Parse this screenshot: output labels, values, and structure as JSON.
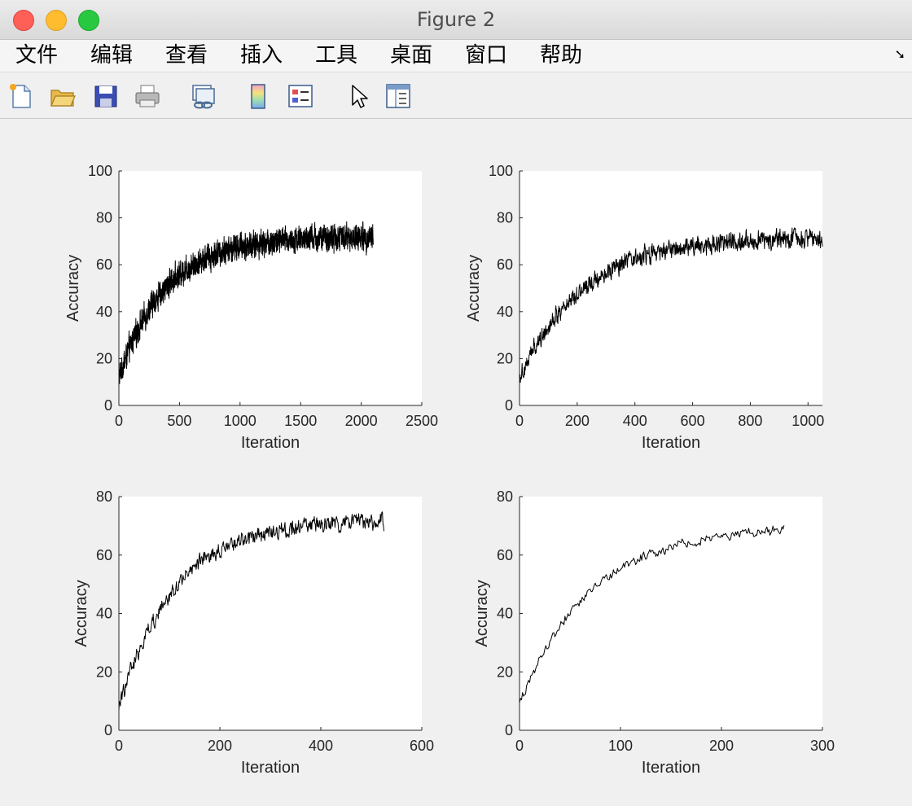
{
  "window": {
    "title": "Figure 2"
  },
  "menu": {
    "items": [
      "文件",
      "编辑",
      "查看",
      "插入",
      "工具",
      "桌面",
      "窗口",
      "帮助"
    ]
  },
  "toolbar": {
    "icons": [
      "new-figure-icon",
      "open-file-icon",
      "save-icon",
      "print-icon",
      "link-figure-icon",
      "colorbar-icon",
      "legend-icon",
      "pointer-icon",
      "property-inspector-icon"
    ]
  },
  "chart_data": [
    {
      "type": "line",
      "xlabel": "Iteration",
      "ylabel": "Accuracy",
      "xlim": [
        0,
        2500
      ],
      "ylim": [
        0,
        100
      ],
      "xticks": [
        0,
        500,
        1000,
        1500,
        2000,
        2500
      ],
      "yticks": [
        0,
        20,
        40,
        60,
        80,
        100
      ],
      "series": [
        {
          "points": 2100,
          "start": 12,
          "plateau": 72,
          "tau": 380,
          "noise": 7
        }
      ],
      "grid": false,
      "color": "#000000"
    },
    {
      "type": "line",
      "xlabel": "Iteration",
      "ylabel": "Accuracy",
      "xlim": [
        0,
        1050
      ],
      "ylim": [
        0,
        100
      ],
      "xticks": [
        0,
        200,
        400,
        600,
        800,
        1000
      ],
      "yticks": [
        0,
        20,
        40,
        60,
        80,
        100
      ],
      "series": [
        {
          "points": 1050,
          "start": 12,
          "plateau": 72,
          "tau": 220,
          "noise": 5
        }
      ],
      "grid": false,
      "color": "#000000"
    },
    {
      "type": "line",
      "xlabel": "Iteration",
      "ylabel": "Accuracy",
      "xlim": [
        0,
        600
      ],
      "ylim": [
        0,
        80
      ],
      "xticks": [
        0,
        200,
        400,
        600
      ],
      "yticks": [
        0,
        20,
        40,
        60,
        80
      ],
      "series": [
        {
          "points": 525,
          "start": 8,
          "plateau": 72,
          "tau": 110,
          "noise": 3.5
        }
      ],
      "grid": false,
      "color": "#000000"
    },
    {
      "type": "line",
      "xlabel": "Iteration",
      "ylabel": "Accuracy",
      "xlim": [
        0,
        300
      ],
      "ylim": [
        0,
        80
      ],
      "xticks": [
        0,
        100,
        200,
        300
      ],
      "yticks": [
        0,
        20,
        40,
        60,
        80
      ],
      "series": [
        {
          "points": 262,
          "start": 9,
          "plateau": 70,
          "tau": 70,
          "noise": 2
        }
      ],
      "grid": false,
      "color": "#000000"
    }
  ]
}
